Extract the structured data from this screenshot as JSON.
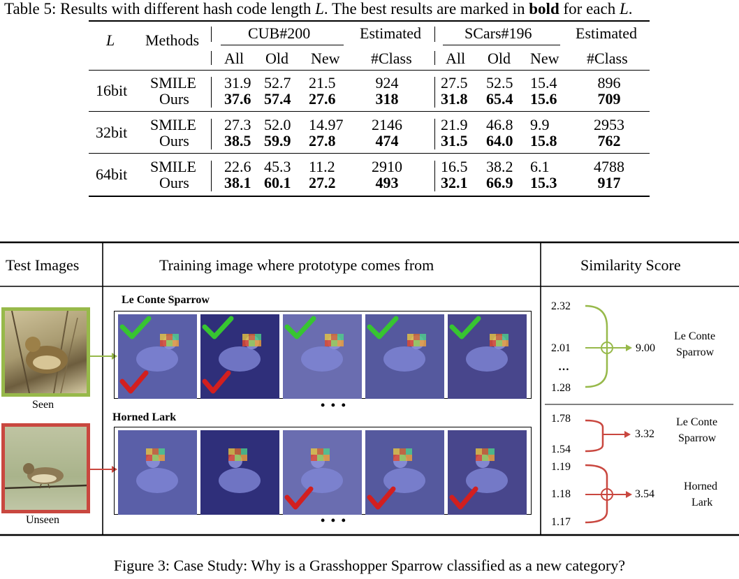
{
  "table5": {
    "caption_prefix": "Table 5: Results with different hash code length ",
    "caption_L1": "L",
    "caption_mid": ". The best results are marked in ",
    "caption_bold": "bold",
    "caption_mid2": " for each ",
    "caption_L2": "L",
    "caption_end": ".",
    "col_L": "L",
    "col_methods": "Methods",
    "group1": "CUB#200",
    "group2": "SCars#196",
    "estimated": "Estimated",
    "est_class": "#Class",
    "sub": [
      "All",
      "Old",
      "New"
    ],
    "rows": [
      {
        "L": "16bit",
        "smile": {
          "label": "SMILE",
          "cub": [
            "31.9",
            "52.7",
            "21.5"
          ],
          "cub_est": "924",
          "cars": [
            "27.5",
            "52.5",
            "15.4"
          ],
          "cars_est": "896"
        },
        "ours": {
          "label": "Ours",
          "cub": [
            "37.6",
            "57.4",
            "27.6"
          ],
          "cub_est": "318",
          "cars": [
            "31.8",
            "65.4",
            "15.6"
          ],
          "cars_est": "709"
        }
      },
      {
        "L": "32bit",
        "smile": {
          "label": "SMILE",
          "cub": [
            "27.3",
            "52.0",
            "14.97"
          ],
          "cub_est": "2146",
          "cars": [
            "21.9",
            "46.8",
            "9.9"
          ],
          "cars_est": "2953"
        },
        "ours": {
          "label": "Ours",
          "cub": [
            "38.5",
            "59.9",
            "27.8"
          ],
          "cub_est": "474",
          "cars": [
            "31.5",
            "64.0",
            "15.8"
          ],
          "cars_est": "762"
        }
      },
      {
        "L": "64bit",
        "smile": {
          "label": "SMILE",
          "cub": [
            "22.6",
            "45.3",
            "11.2"
          ],
          "cub_est": "2910",
          "cars": [
            "16.5",
            "38.2",
            "6.1"
          ],
          "cars_est": "4788"
        },
        "ours": {
          "label": "Ours",
          "cub": [
            "38.1",
            "60.1",
            "27.2"
          ],
          "cub_est": "493",
          "cars": [
            "32.1",
            "66.9",
            "15.3"
          ],
          "cars_est": "917"
        }
      }
    ]
  },
  "figure3": {
    "header_test": "Test Images",
    "header_training": "Training image where prototype comes from",
    "header_similarity": "Similarity Score",
    "seen_label": "Seen",
    "unseen_label": "Unseen",
    "class1_title": "Le Conte Sparrow",
    "class2_title": "Horned Lark",
    "ellipsis": "• • •",
    "seen_scores": [
      "2.32",
      "2.01",
      "…",
      "1.28"
    ],
    "seen_total": "9.00",
    "seen_class": [
      "Le Conte",
      "Sparrow"
    ],
    "unseen_scores_a": [
      "1.78",
      "1.54"
    ],
    "unseen_total_a": "3.32",
    "unseen_class_a": [
      "Le Conte",
      "Sparrow"
    ],
    "unseen_scores_b": [
      "1.19",
      "1.18",
      "1.17"
    ],
    "unseen_total_b": "3.54",
    "unseen_class_b": [
      "Horned",
      "Lark"
    ],
    "colors": {
      "seen": "#97b94a",
      "unseen": "#c9473f",
      "check_green": "#37c531",
      "check_red": "#d21f1f"
    },
    "caption": "Figure 3: Case Study: Why is a Grasshopper Sparrow classified as a new category?"
  }
}
